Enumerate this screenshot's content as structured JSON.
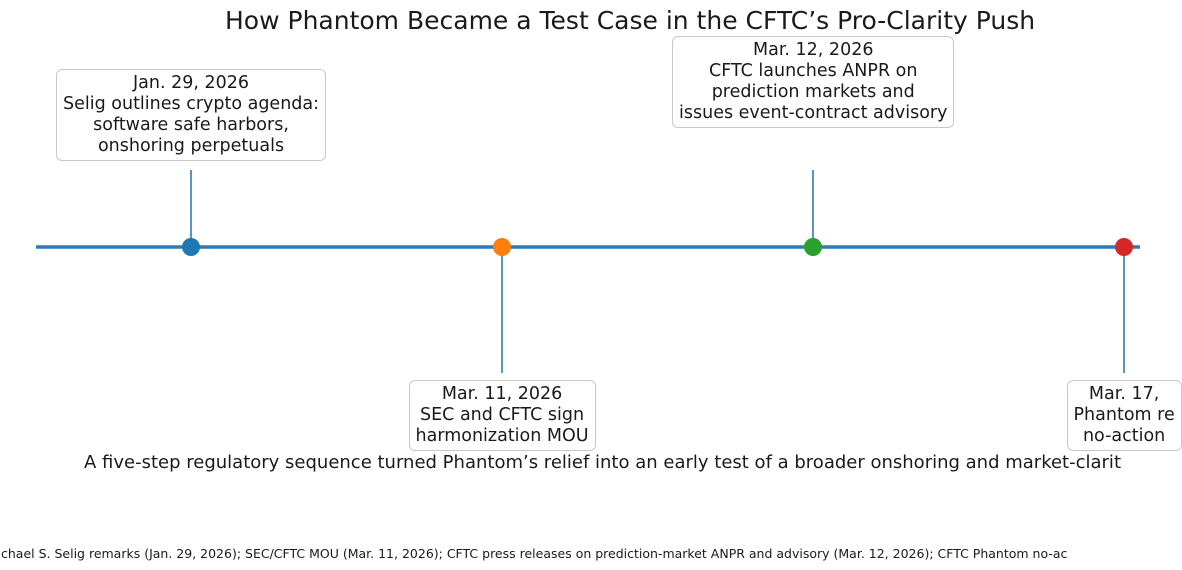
{
  "chart_data": {
    "type": "timeline",
    "title": "How Phantom Became a Test Case in the CFTC’s Pro-Clarity Push",
    "subtitle": "A five-step regulatory sequence turned Phantom’s relief into an early test of a broader onshoring and market-clarit",
    "source": "chael S. Selig remarks (Jan. 29, 2026); SEC/CFTC MOU (Mar. 11, 2026); CFTC press releases on prediction-market ANPR and advisory (Mar. 12, 2026); CFTC Phantom no-ac",
    "line_color": "#2e7bb5",
    "events": [
      {
        "date": "Jan. 29, 2026",
        "lines": [
          "Jan. 29, 2026",
          "Selig outlines crypto agenda:",
          "software safe harbors,",
          "onshoring perpetuals"
        ],
        "side": "above",
        "color": "#1f77b4"
      },
      {
        "date": "Mar. 11, 2026",
        "lines": [
          "Mar. 11, 2026",
          "SEC and CFTC sign",
          "harmonization MOU"
        ],
        "side": "below",
        "color": "#ff7f0e"
      },
      {
        "date": "Mar. 12, 2026",
        "lines": [
          "Mar. 12, 2026",
          "CFTC launches ANPR on",
          "prediction markets and",
          "issues event-contract advisory"
        ],
        "side": "above",
        "color": "#2ca02c"
      },
      {
        "date": "Mar. 17, 2026",
        "lines": [
          "Mar. 17,",
          "Phantom re",
          "no-action"
        ],
        "side": "below",
        "color": "#d62728"
      }
    ]
  }
}
